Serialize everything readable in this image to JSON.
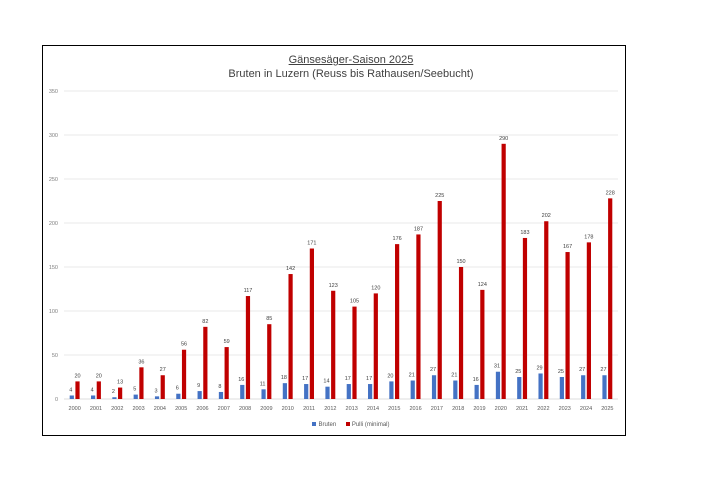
{
  "chart_data": {
    "type": "bar",
    "title": "Gänsesäger-Saison 2025",
    "subtitle": "Bruten in Luzern (Reuss bis Rathausen/Seebucht)",
    "xlabel": "",
    "ylabel": "",
    "ylim": [
      0,
      350
    ],
    "yticks": [
      0,
      50,
      100,
      150,
      200,
      250,
      300,
      350
    ],
    "grid": true,
    "legend_position": "bottom",
    "categories": [
      "2000",
      "2001",
      "2002",
      "2003",
      "2004",
      "2005",
      "2006",
      "2007",
      "2008",
      "2009",
      "2010",
      "2011",
      "2012",
      "2013",
      "2014",
      "2015",
      "2016",
      "2017",
      "2018",
      "2019",
      "2020",
      "2021",
      "2022",
      "2023",
      "2024",
      "2025"
    ],
    "series": [
      {
        "name": "Bruten",
        "color": "#4472C4",
        "values": [
          4,
          4,
          2,
          5,
          3,
          6,
          9,
          8,
          16,
          11,
          18,
          17,
          14,
          17,
          17,
          20,
          21,
          27,
          21,
          16,
          31,
          25,
          29,
          25,
          27,
          27
        ]
      },
      {
        "name": "Pulli (minimal)",
        "color": "#C00000",
        "values": [
          20,
          20,
          13,
          36,
          27,
          56,
          82,
          59,
          117,
          85,
          142,
          171,
          123,
          105,
          120,
          176,
          187,
          225,
          150,
          124,
          290,
          183,
          202,
          167,
          178,
          228
        ]
      }
    ],
    "data_labels": true
  },
  "legend": {
    "items": [
      {
        "label": "Bruten",
        "color": "#4472C4"
      },
      {
        "label": "Pulli (minimal)",
        "color": "#C00000"
      }
    ]
  }
}
